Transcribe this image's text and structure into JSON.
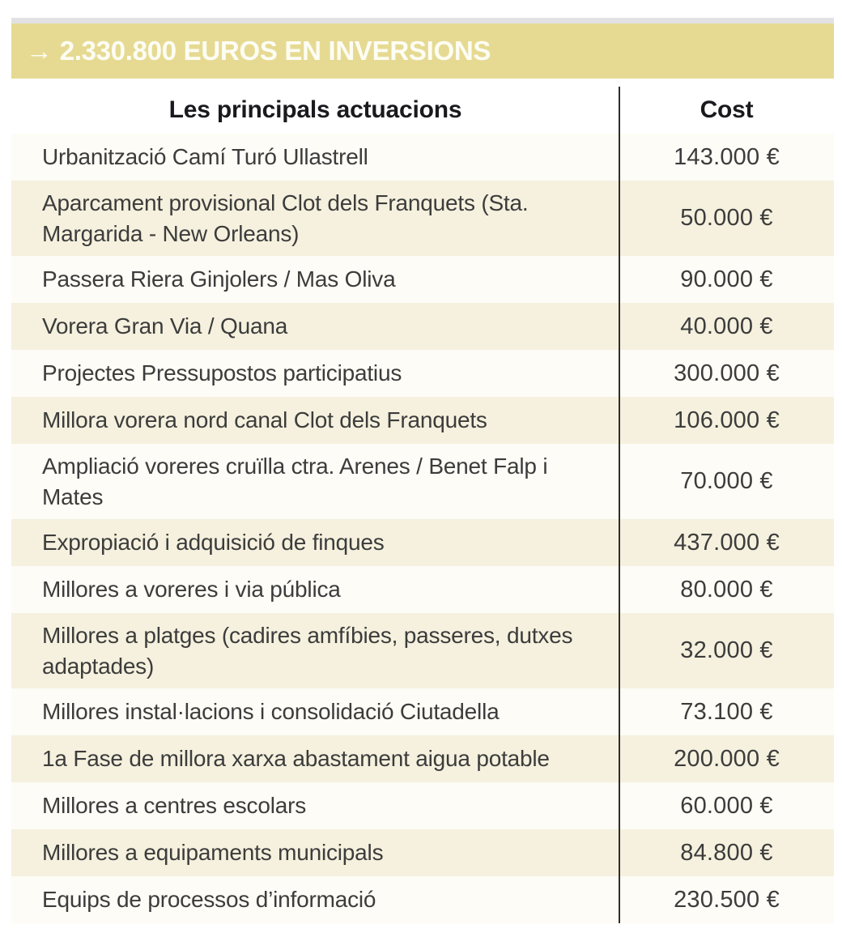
{
  "banner": {
    "arrow": "→",
    "title": "2.330.800 EUROS EN INVERSIONS"
  },
  "table": {
    "headers": {
      "actions": "Les principals actuacions",
      "cost": "Cost"
    },
    "rows": [
      {
        "label": "Urbanització Camí Turó Ullastrell",
        "cost": "143.000 €"
      },
      {
        "label": "Aparcament provisional Clot dels Franquets (Sta. Margarida - New Orleans)",
        "cost": "50.000 €"
      },
      {
        "label": "Passera Riera Ginjolers / Mas Oliva",
        "cost": "90.000 €"
      },
      {
        "label": "Vorera Gran Via / Quana",
        "cost": "40.000 €"
      },
      {
        "label": "Projectes Pressupostos participatius",
        "cost": "300.000 €"
      },
      {
        "label": "Millora vorera nord canal Clot dels Franquets",
        "cost": "106.000 €"
      },
      {
        "label": "Ampliació voreres cruïlla ctra. Arenes / Benet Falp i Mates",
        "cost": "70.000 €"
      },
      {
        "label": "Expropiació i adquisició de finques",
        "cost": "437.000 €"
      },
      {
        "label": "Millores a voreres i via pública",
        "cost": "80.000 €"
      },
      {
        "label": "Millores a platges (cadires amfíbies, passeres, dutxes adaptades)",
        "cost": "32.000 €"
      },
      {
        "label": "Millores instal·lacions i consolidació Ciutadella",
        "cost": "73.100 €"
      },
      {
        "label": "1a Fase de millora xarxa abastament aigua potable",
        "cost": "200.000 €"
      },
      {
        "label": "Millores a centres escolars",
        "cost": "60.000 €"
      },
      {
        "label": "Millores a equipaments municipals",
        "cost": "84.800 €"
      },
      {
        "label": "Equips de processos d’informació",
        "cost": "230.500 €"
      }
    ]
  },
  "chart_data": {
    "type": "table",
    "title": "2.330.800 EUROS EN INVERSIONS",
    "banner_total_eur": 2330800,
    "currency": "EUR",
    "columns": [
      "Les principals actuacions",
      "Cost"
    ],
    "categories": [
      "Urbanització Camí Turó Ullastrell",
      "Aparcament provisional Clot dels Franquets (Sta. Margarida - New Orleans)",
      "Passera Riera Ginjolers / Mas Oliva",
      "Vorera Gran Via / Quana",
      "Projectes Pressupostos participatius",
      "Millora vorera nord canal Clot dels Franquets",
      "Ampliació voreres cruïlla ctra. Arenes / Benet Falp i Mates",
      "Expropiació i adquisició de finques",
      "Millores a voreres i via pública",
      "Millores a platges (cadires amfíbies, passeres, dutxes adaptades)",
      "Millores instal·lacions i consolidació Ciutadella",
      "1a Fase de millora xarxa abastament aigua potable",
      "Millores a centres escolars",
      "Millores a equipaments municipals",
      "Equips de processos d’informació"
    ],
    "values": [
      143000,
      50000,
      90000,
      40000,
      300000,
      106000,
      70000,
      437000,
      80000,
      32000,
      73100,
      200000,
      60000,
      84800,
      230500
    ]
  },
  "colors": {
    "banner_bg": "#e6da93",
    "banner_text": "#fdfdf4",
    "top_strip": "#e2e2e4",
    "row_cream": "#f5f1de",
    "row_white": "#fdfcf6",
    "body_text": "#3c3c3c",
    "header_text": "#1a1a1e",
    "divider": "#2e2e2e"
  }
}
